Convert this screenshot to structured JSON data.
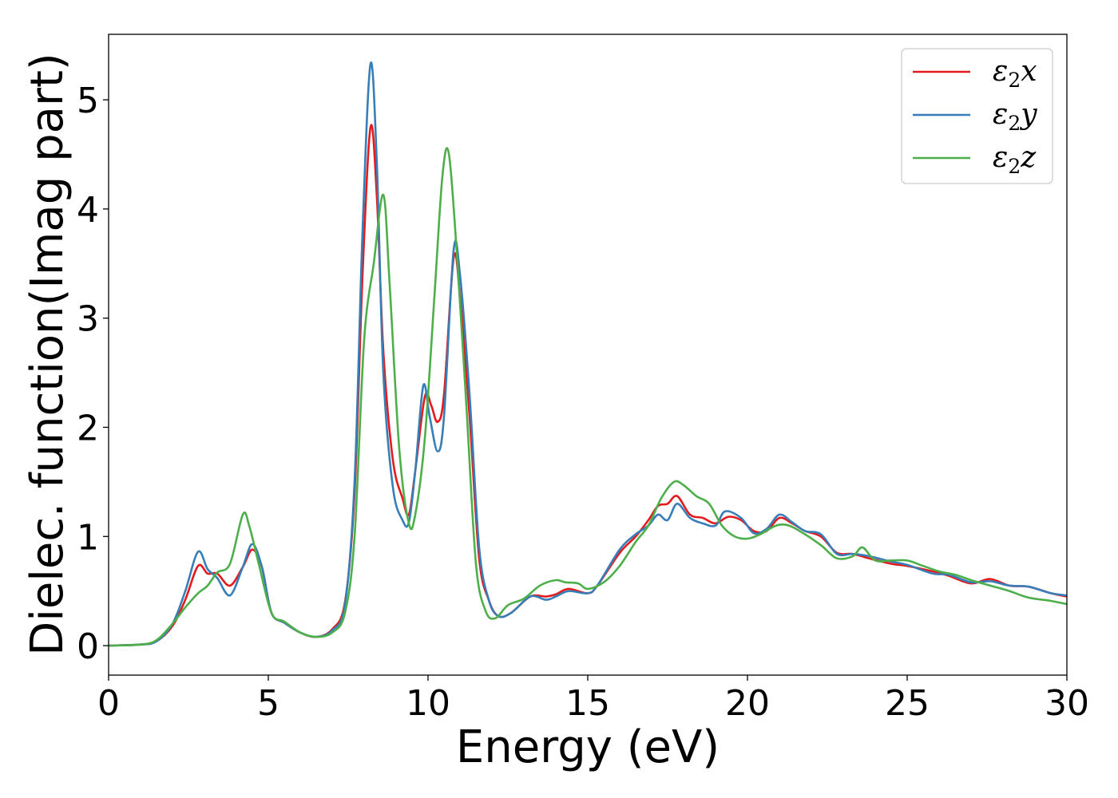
{
  "chart_data": {
    "type": "line",
    "xlabel": "Energy (eV)",
    "ylabel": "Dielec. function(Imag part)",
    "xlim": [
      0,
      30
    ],
    "ylim": [
      -0.27,
      5.6
    ],
    "xticks": [
      0,
      5,
      10,
      15,
      20,
      25,
      30
    ],
    "yticks": [
      0,
      1,
      2,
      3,
      4,
      5
    ],
    "grid": false,
    "legend_position": "top-right",
    "series": [
      {
        "name": "ε₂x",
        "legend_main": "ε",
        "legend_sub": "2",
        "legend_axis": "x",
        "color": "#e41a1c",
        "points": [
          [
            0,
            0
          ],
          [
            1,
            0.01
          ],
          [
            1.5,
            0.04
          ],
          [
            2,
            0.18
          ],
          [
            2.4,
            0.42
          ],
          [
            2.8,
            0.73
          ],
          [
            3.1,
            0.66
          ],
          [
            3.4,
            0.66
          ],
          [
            3.8,
            0.55
          ],
          [
            4.2,
            0.72
          ],
          [
            4.5,
            0.88
          ],
          [
            4.8,
            0.72
          ],
          [
            5.1,
            0.3
          ],
          [
            5.5,
            0.21
          ],
          [
            6,
            0.12
          ],
          [
            6.5,
            0.08
          ],
          [
            7,
            0.15
          ],
          [
            7.4,
            0.4
          ],
          [
            7.7,
            1.4
          ],
          [
            7.95,
            3.4
          ],
          [
            8.2,
            4.75
          ],
          [
            8.4,
            4.1
          ],
          [
            8.6,
            2.7
          ],
          [
            8.9,
            1.7
          ],
          [
            9.2,
            1.35
          ],
          [
            9.4,
            1.2
          ],
          [
            9.6,
            1.6
          ],
          [
            9.9,
            2.28
          ],
          [
            10.1,
            2.2
          ],
          [
            10.3,
            2.05
          ],
          [
            10.5,
            2.3
          ],
          [
            10.8,
            3.55
          ],
          [
            11.0,
            3.2
          ],
          [
            11.3,
            2.1
          ],
          [
            11.6,
            0.8
          ],
          [
            11.9,
            0.42
          ],
          [
            12.2,
            0.27
          ],
          [
            12.6,
            0.3
          ],
          [
            13.2,
            0.45
          ],
          [
            13.7,
            0.45
          ],
          [
            14.0,
            0.47
          ],
          [
            14.4,
            0.52
          ],
          [
            15.0,
            0.48
          ],
          [
            15.3,
            0.55
          ],
          [
            16.0,
            0.85
          ],
          [
            16.5,
            1.0
          ],
          [
            16.9,
            1.15
          ],
          [
            17.2,
            1.28
          ],
          [
            17.5,
            1.3
          ],
          [
            17.8,
            1.37
          ],
          [
            18.2,
            1.2
          ],
          [
            18.6,
            1.17
          ],
          [
            19.0,
            1.12
          ],
          [
            19.4,
            1.18
          ],
          [
            19.8,
            1.15
          ],
          [
            20.2,
            1.05
          ],
          [
            20.6,
            1.05
          ],
          [
            21.0,
            1.17
          ],
          [
            21.4,
            1.12
          ],
          [
            21.8,
            1.05
          ],
          [
            22.3,
            1.0
          ],
          [
            22.8,
            0.85
          ],
          [
            23.3,
            0.84
          ],
          [
            23.8,
            0.8
          ],
          [
            24.5,
            0.75
          ],
          [
            25.0,
            0.73
          ],
          [
            25.8,
            0.68
          ],
          [
            26.3,
            0.64
          ],
          [
            27.0,
            0.57
          ],
          [
            27.6,
            0.61
          ],
          [
            28.2,
            0.55
          ],
          [
            28.8,
            0.54
          ],
          [
            29.5,
            0.48
          ],
          [
            30,
            0.45
          ]
        ]
      },
      {
        "name": "ε₂y",
        "legend_main": "ε",
        "legend_sub": "2",
        "legend_axis": "y",
        "color": "#377eb8",
        "points": [
          [
            0,
            0
          ],
          [
            1,
            0.01
          ],
          [
            1.5,
            0.04
          ],
          [
            2,
            0.2
          ],
          [
            2.4,
            0.5
          ],
          [
            2.8,
            0.86
          ],
          [
            3.1,
            0.7
          ],
          [
            3.4,
            0.62
          ],
          [
            3.8,
            0.46
          ],
          [
            4.2,
            0.72
          ],
          [
            4.5,
            0.93
          ],
          [
            4.8,
            0.72
          ],
          [
            5.1,
            0.3
          ],
          [
            5.5,
            0.21
          ],
          [
            6,
            0.12
          ],
          [
            6.5,
            0.08
          ],
          [
            7,
            0.14
          ],
          [
            7.4,
            0.38
          ],
          [
            7.7,
            1.5
          ],
          [
            7.95,
            3.8
          ],
          [
            8.2,
            5.33
          ],
          [
            8.4,
            4.4
          ],
          [
            8.6,
            2.5
          ],
          [
            8.9,
            1.45
          ],
          [
            9.2,
            1.15
          ],
          [
            9.4,
            1.13
          ],
          [
            9.6,
            1.6
          ],
          [
            9.85,
            2.38
          ],
          [
            10.05,
            2.1
          ],
          [
            10.3,
            1.78
          ],
          [
            10.5,
            2.1
          ],
          [
            10.8,
            3.62
          ],
          [
            11.0,
            3.4
          ],
          [
            11.3,
            2.3
          ],
          [
            11.6,
            0.9
          ],
          [
            11.9,
            0.42
          ],
          [
            12.2,
            0.27
          ],
          [
            12.6,
            0.3
          ],
          [
            13.2,
            0.45
          ],
          [
            13.7,
            0.42
          ],
          [
            14.0,
            0.45
          ],
          [
            14.4,
            0.5
          ],
          [
            15.0,
            0.48
          ],
          [
            15.3,
            0.55
          ],
          [
            16.0,
            0.88
          ],
          [
            16.5,
            1.02
          ],
          [
            16.9,
            1.1
          ],
          [
            17.2,
            1.2
          ],
          [
            17.5,
            1.15
          ],
          [
            17.8,
            1.3
          ],
          [
            18.2,
            1.17
          ],
          [
            18.6,
            1.12
          ],
          [
            19.0,
            1.1
          ],
          [
            19.3,
            1.23
          ],
          [
            19.8,
            1.17
          ],
          [
            20.2,
            1.03
          ],
          [
            20.6,
            1.07
          ],
          [
            21.0,
            1.2
          ],
          [
            21.4,
            1.13
          ],
          [
            21.8,
            1.05
          ],
          [
            22.3,
            1.02
          ],
          [
            22.8,
            0.84
          ],
          [
            23.3,
            0.84
          ],
          [
            23.8,
            0.82
          ],
          [
            24.5,
            0.77
          ],
          [
            25.0,
            0.74
          ],
          [
            25.8,
            0.66
          ],
          [
            26.3,
            0.65
          ],
          [
            27.0,
            0.58
          ],
          [
            27.6,
            0.59
          ],
          [
            28.2,
            0.55
          ],
          [
            28.8,
            0.54
          ],
          [
            29.5,
            0.48
          ],
          [
            30,
            0.46
          ]
        ]
      },
      {
        "name": "ε₂z",
        "legend_main": "ε",
        "legend_sub": "2",
        "legend_axis": "z",
        "color": "#4daf4a",
        "points": [
          [
            0,
            0
          ],
          [
            1,
            0.01
          ],
          [
            1.5,
            0.05
          ],
          [
            2,
            0.2
          ],
          [
            2.4,
            0.35
          ],
          [
            2.8,
            0.48
          ],
          [
            3.1,
            0.55
          ],
          [
            3.4,
            0.67
          ],
          [
            3.8,
            0.75
          ],
          [
            4.2,
            1.2
          ],
          [
            4.4,
            1.1
          ],
          [
            4.7,
            0.75
          ],
          [
            5.1,
            0.3
          ],
          [
            5.5,
            0.22
          ],
          [
            6,
            0.12
          ],
          [
            6.5,
            0.08
          ],
          [
            7,
            0.12
          ],
          [
            7.4,
            0.3
          ],
          [
            7.7,
            1.0
          ],
          [
            8.0,
            2.8
          ],
          [
            8.3,
            3.5
          ],
          [
            8.6,
            4.13
          ],
          [
            8.8,
            3.3
          ],
          [
            9.1,
            1.8
          ],
          [
            9.4,
            1.12
          ],
          [
            9.6,
            1.2
          ],
          [
            9.9,
            1.9
          ],
          [
            10.2,
            3.2
          ],
          [
            10.45,
            4.3
          ],
          [
            10.65,
            4.51
          ],
          [
            10.9,
            3.6
          ],
          [
            11.2,
            2.2
          ],
          [
            11.5,
            0.75
          ],
          [
            11.8,
            0.32
          ],
          [
            12.1,
            0.25
          ],
          [
            12.5,
            0.37
          ],
          [
            13.0,
            0.43
          ],
          [
            13.5,
            0.55
          ],
          [
            14.0,
            0.6
          ],
          [
            14.3,
            0.58
          ],
          [
            14.7,
            0.57
          ],
          [
            15.0,
            0.52
          ],
          [
            15.5,
            0.58
          ],
          [
            16.0,
            0.73
          ],
          [
            16.5,
            0.95
          ],
          [
            16.9,
            1.1
          ],
          [
            17.3,
            1.35
          ],
          [
            17.7,
            1.5
          ],
          [
            18.0,
            1.47
          ],
          [
            18.4,
            1.37
          ],
          [
            18.8,
            1.3
          ],
          [
            19.2,
            1.1
          ],
          [
            19.6,
            1.0
          ],
          [
            20.0,
            0.98
          ],
          [
            20.4,
            1.02
          ],
          [
            20.9,
            1.1
          ],
          [
            21.3,
            1.1
          ],
          [
            21.8,
            1.02
          ],
          [
            22.3,
            0.92
          ],
          [
            22.8,
            0.8
          ],
          [
            23.3,
            0.82
          ],
          [
            23.6,
            0.9
          ],
          [
            24.0,
            0.78
          ],
          [
            24.5,
            0.78
          ],
          [
            25.0,
            0.78
          ],
          [
            25.5,
            0.73
          ],
          [
            26.0,
            0.68
          ],
          [
            26.5,
            0.65
          ],
          [
            27.0,
            0.6
          ],
          [
            27.6,
            0.55
          ],
          [
            28.2,
            0.5
          ],
          [
            28.8,
            0.44
          ],
          [
            29.5,
            0.41
          ],
          [
            30,
            0.38
          ]
        ]
      }
    ]
  }
}
